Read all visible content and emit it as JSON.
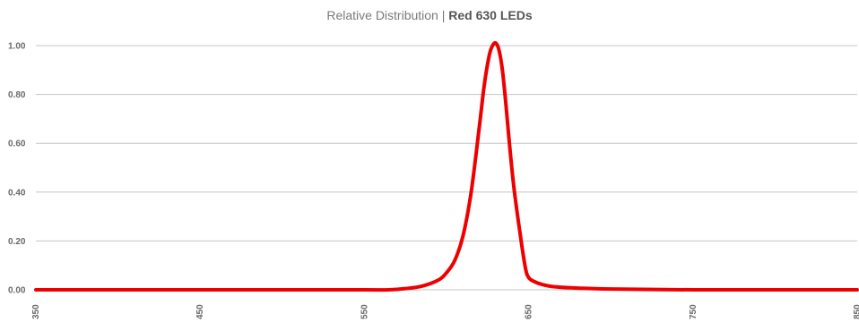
{
  "chart_data": {
    "type": "line",
    "title_prefix": "Relative Distribution | ",
    "title_bold": "Red 630 LEDs",
    "xlabel": "",
    "ylabel": "",
    "xlim": [
      350,
      850
    ],
    "ylim": [
      0,
      1.0
    ],
    "grid": true,
    "legend": "none",
    "y_ticks": [
      "0.00",
      "0.20",
      "0.40",
      "0.60",
      "0.80",
      "1.00"
    ],
    "x_ticks": [
      "350",
      "450",
      "550",
      "650",
      "750",
      "850"
    ],
    "series": [
      {
        "color": "#ee0000",
        "x": [
          350,
          400,
          450,
          500,
          550,
          565,
          575,
          585,
          595,
          600,
          605,
          610,
          615,
          620,
          623,
          626,
          628,
          630,
          632,
          634,
          636,
          638,
          641,
          645,
          648,
          650,
          653,
          658,
          665,
          680,
          700,
          750,
          800,
          850
        ],
        "y": [
          0,
          0,
          0,
          0,
          0,
          0,
          0.005,
          0.015,
          0.04,
          0.07,
          0.12,
          0.22,
          0.4,
          0.67,
          0.84,
          0.96,
          1.0,
          1.01,
          0.98,
          0.9,
          0.77,
          0.62,
          0.42,
          0.22,
          0.09,
          0.05,
          0.035,
          0.022,
          0.013,
          0.007,
          0.003,
          0.0,
          0.0,
          0.0
        ]
      }
    ]
  }
}
